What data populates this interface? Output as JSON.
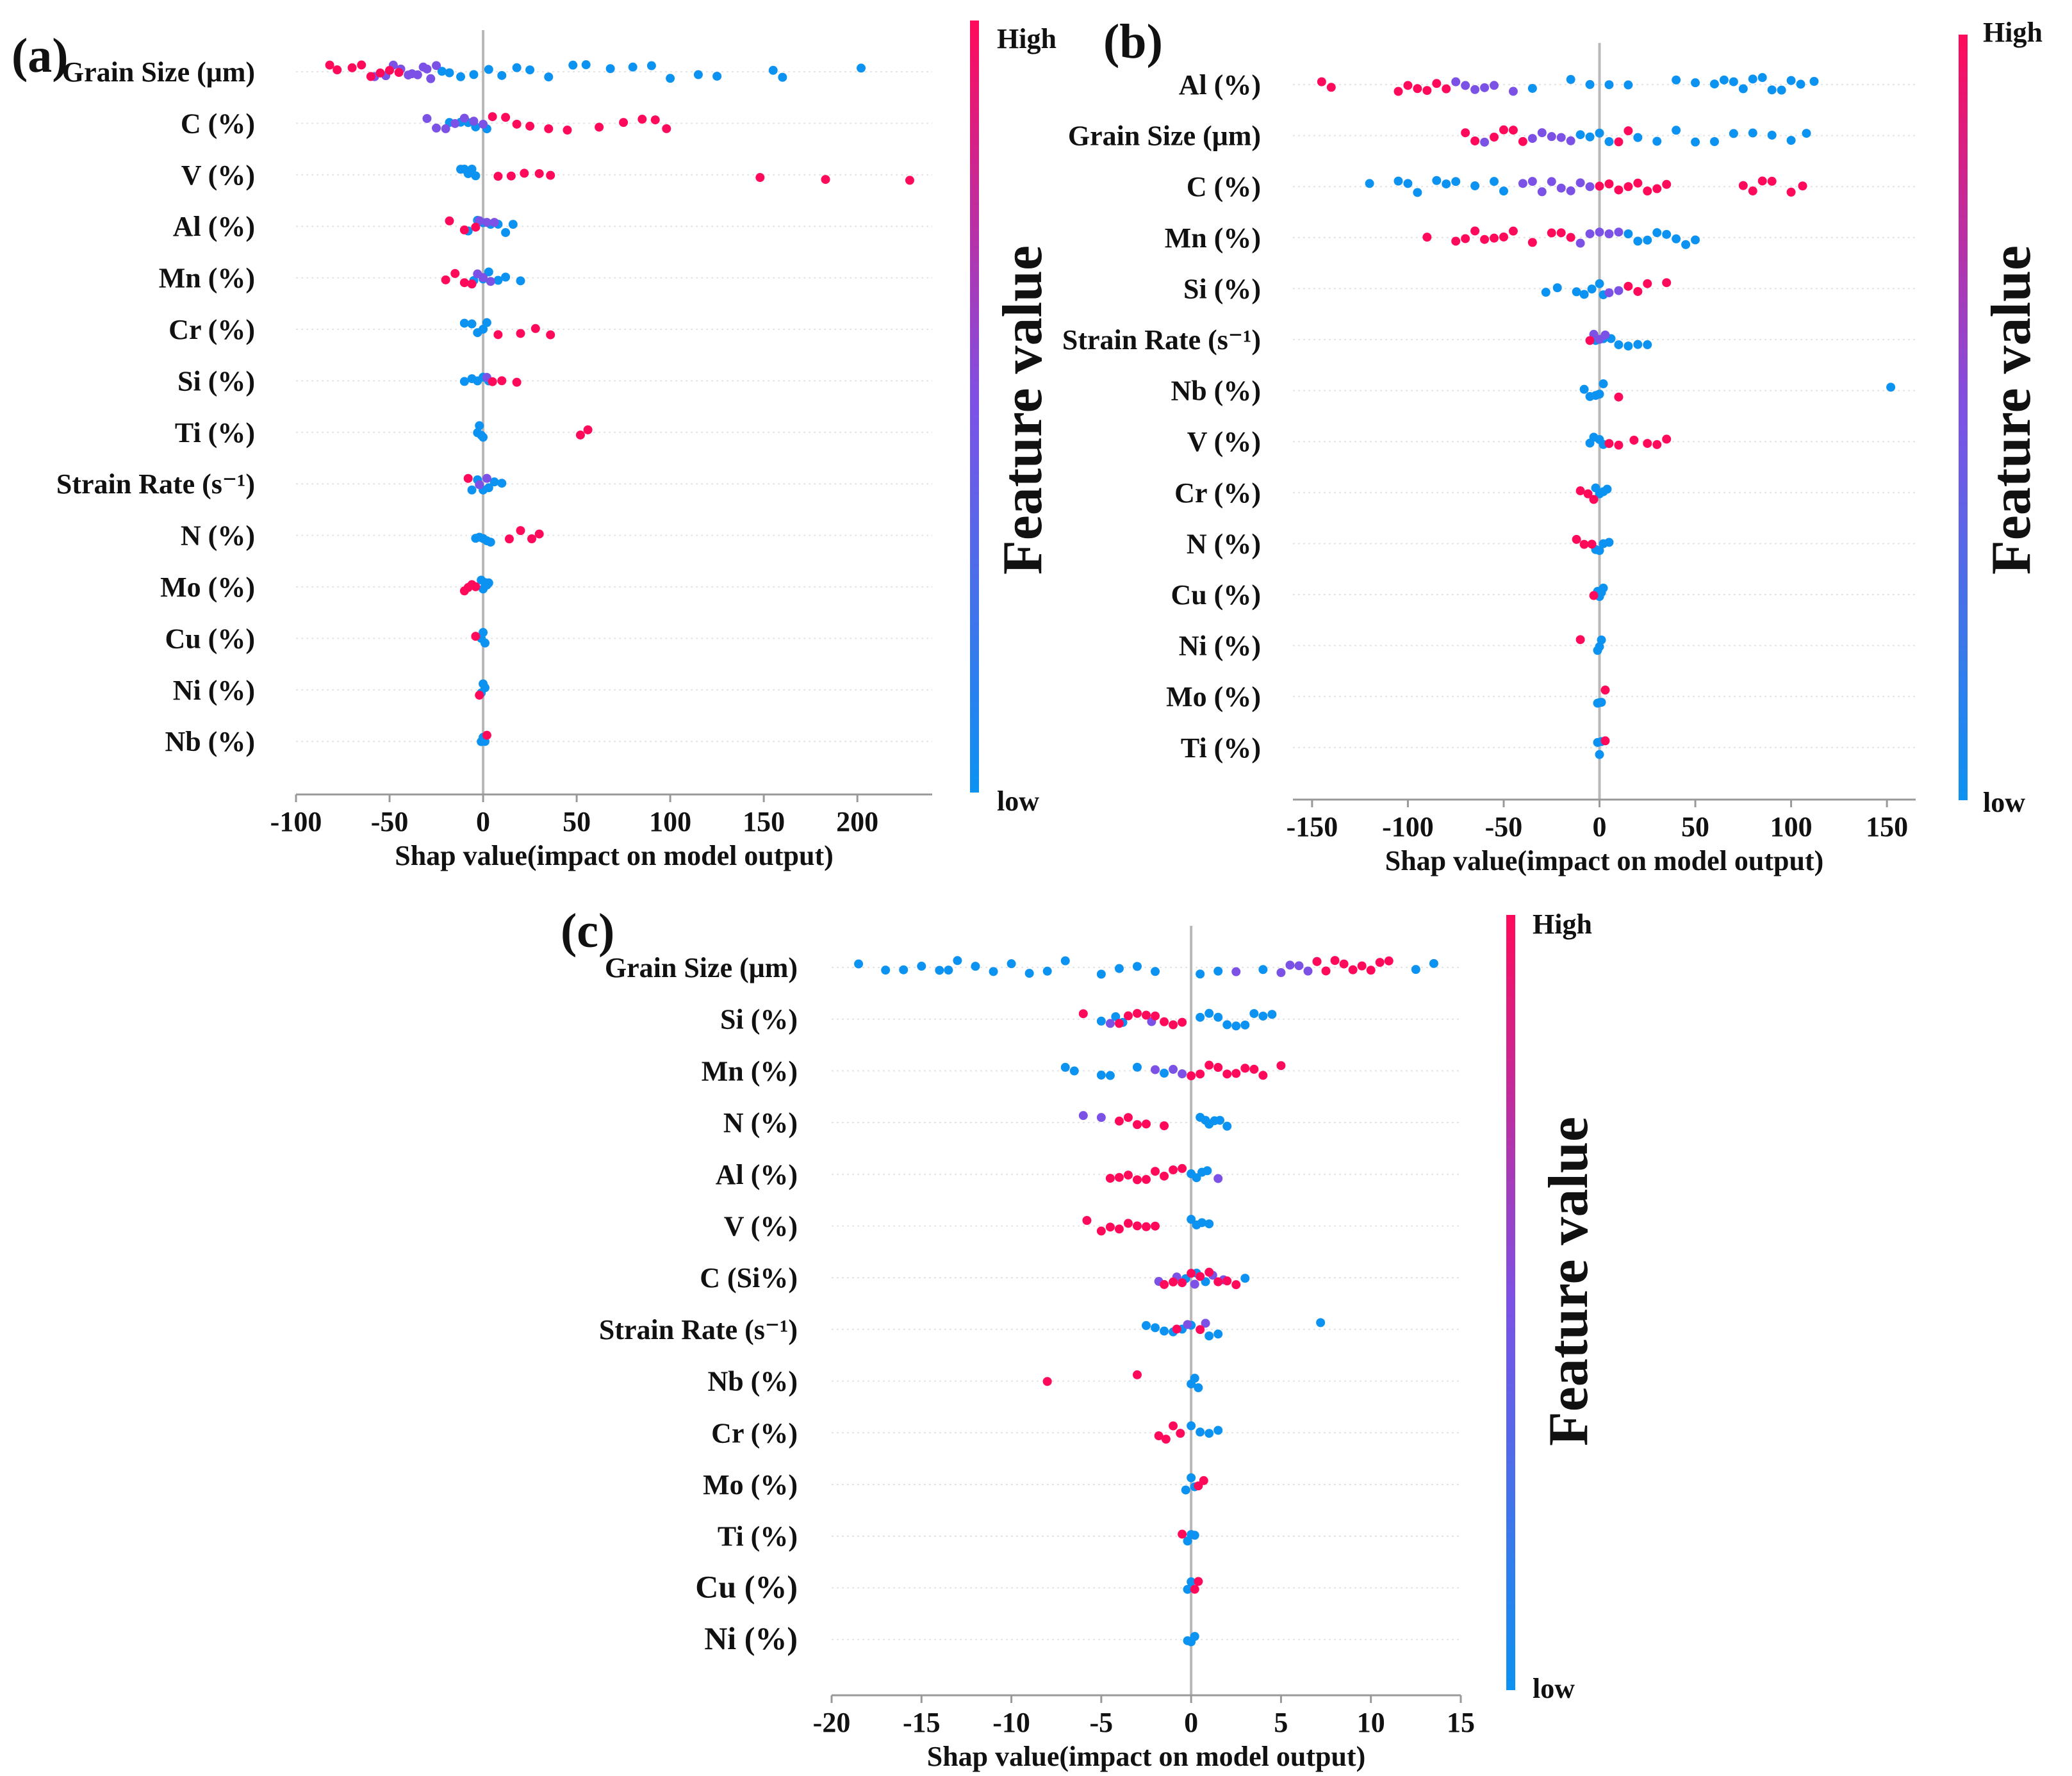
{
  "figure": {
    "colors": {
      "high": "#ff0a5a",
      "low": "#0c92f0",
      "mid": "#7c52e6",
      "axis": "#999999",
      "zero_line": "#b8b8b8",
      "grid": "#e4e4e4"
    }
  },
  "chart_data": [
    {
      "panel_label": "(a)",
      "type": "beeswarm",
      "xlabel": "Shap value(impact on model output)",
      "xlim": [
        -100,
        240
      ],
      "xticks": [
        -100,
        -50,
        0,
        50,
        100,
        150,
        200
      ],
      "colorbar": {
        "title": "Feature value",
        "high_label": "High",
        "low_label": "low"
      },
      "features": [
        {
          "name": "Grain Size (μm)",
          "high_points": [
            -82,
            -78,
            -70,
            -65,
            -60,
            -55,
            -50,
            -45
          ],
          "mixed_points": [
            -58,
            -52,
            -48,
            -44,
            -40,
            -38,
            -35,
            -32,
            -30,
            -28,
            -25
          ],
          "low_points": [
            -22,
            -18,
            -12,
            -5,
            3,
            10,
            18,
            25,
            35,
            48,
            55,
            68,
            80,
            90,
            100,
            115,
            125,
            155,
            160,
            202
          ]
        },
        {
          "name": "C (%)",
          "high_points": [
            5,
            12,
            18,
            25,
            35,
            45,
            62,
            75,
            85,
            92,
            98
          ],
          "mixed_points": [
            -30,
            -25,
            -20,
            -15,
            -10,
            -5,
            0
          ],
          "low_points": [
            -18,
            -12,
            -8,
            -4,
            2
          ]
        },
        {
          "name": "V (%)",
          "high_points": [
            8,
            15,
            22,
            30,
            36,
            148,
            183,
            228
          ],
          "mixed_points": [],
          "low_points": [
            -12,
            -10,
            -8,
            -6,
            -4
          ]
        },
        {
          "name": "Al (%)",
          "high_points": [
            -18,
            -10,
            -4
          ],
          "mixed_points": [
            -2,
            2,
            6
          ],
          "low_points": [
            -8,
            -3,
            0,
            4,
            8,
            12,
            16
          ]
        },
        {
          "name": "Mn (%)",
          "high_points": [
            -20,
            -15,
            -10,
            -6
          ],
          "mixed_points": [
            -3,
            0,
            4
          ],
          "low_points": [
            -5,
            0,
            3,
            8,
            12,
            20
          ]
        },
        {
          "name": "Cr (%)",
          "high_points": [
            8,
            20,
            28,
            36
          ],
          "mixed_points": [],
          "low_points": [
            -10,
            -6,
            -3,
            0,
            2
          ]
        },
        {
          "name": "Si (%)",
          "high_points": [
            5,
            10,
            18
          ],
          "mixed_points": [
            2
          ],
          "low_points": [
            -10,
            -6,
            -3,
            0,
            3
          ]
        },
        {
          "name": "Ti (%)",
          "high_points": [
            52,
            56
          ],
          "mixed_points": [],
          "low_points": [
            -3,
            -2,
            -1,
            0
          ]
        },
        {
          "name": "Strain Rate (s⁻¹)",
          "high_points": [
            -8
          ],
          "mixed_points": [
            -2,
            2
          ],
          "low_points": [
            -6,
            -3,
            0,
            3,
            6,
            10
          ]
        },
        {
          "name": "N (%)",
          "high_points": [
            14,
            20,
            26,
            30
          ],
          "mixed_points": [],
          "low_points": [
            -4,
            -2,
            0,
            2,
            4
          ]
        },
        {
          "name": "Mo (%)",
          "high_points": [
            -10,
            -8,
            -6,
            -4
          ],
          "mixed_points": [],
          "low_points": [
            -1,
            0,
            1,
            2,
            3
          ]
        },
        {
          "name": "Cu (%)",
          "high_points": [
            -4
          ],
          "mixed_points": [],
          "low_points": [
            -1,
            0,
            1
          ]
        },
        {
          "name": "Ni (%)",
          "high_points": [
            -2
          ],
          "mixed_points": [],
          "low_points": [
            -1,
            0,
            1
          ]
        },
        {
          "name": "Nb (%)",
          "high_points": [
            2
          ],
          "mixed_points": [],
          "low_points": [
            -1,
            0,
            1
          ]
        }
      ]
    },
    {
      "panel_label": "(b)",
      "type": "beeswarm",
      "xlabel": "Shap value(impact on model output)",
      "xlim": [
        -160,
        165
      ],
      "xticks": [
        -150,
        -100,
        -50,
        0,
        50,
        100,
        150
      ],
      "colorbar": {
        "title": "Feature value",
        "high_label": "High",
        "low_label": "low"
      },
      "features": [
        {
          "name": "Al (%)",
          "high_points": [
            -145,
            -140,
            -105,
            -100,
            -95,
            -90,
            -85,
            -80
          ],
          "mixed_points": [
            -75,
            -70,
            -65,
            -60,
            -55,
            -45
          ],
          "low_points": [
            -35,
            -15,
            -5,
            5,
            15,
            40,
            50,
            60,
            65,
            70,
            75,
            80,
            85,
            90,
            95,
            100,
            105,
            112
          ]
        },
        {
          "name": "Grain Size (μm)",
          "high_points": [
            -70,
            -65,
            -55,
            -50,
            -45,
            -40,
            10,
            15
          ],
          "mixed_points": [
            -60,
            -35,
            -30,
            -25,
            -20,
            -15
          ],
          "low_points": [
            -10,
            -5,
            0,
            5,
            20,
            30,
            40,
            50,
            60,
            70,
            80,
            90,
            100,
            108
          ]
        },
        {
          "name": "C (%)",
          "high_points": [
            0,
            5,
            10,
            15,
            20,
            25,
            30,
            35,
            75,
            80,
            85,
            90,
            100,
            106
          ],
          "mixed_points": [
            -40,
            -35,
            -30,
            -25,
            -20,
            -15,
            -10,
            -5
          ],
          "low_points": [
            -120,
            -105,
            -100,
            -95,
            -85,
            -80,
            -75,
            -65,
            -55,
            -50
          ]
        },
        {
          "name": "Mn (%)",
          "high_points": [
            -90,
            -75,
            -70,
            -65,
            -60,
            -55,
            -50,
            -45,
            -35,
            -25,
            -20,
            -15
          ],
          "mixed_points": [
            -10,
            -5,
            0,
            5,
            10
          ],
          "low_points": [
            15,
            20,
            25,
            30,
            35,
            40,
            45,
            50
          ]
        },
        {
          "name": "Si (%)",
          "high_points": [
            15,
            20,
            25,
            35
          ],
          "mixed_points": [
            5,
            10
          ],
          "low_points": [
            -28,
            -22,
            -12,
            -8,
            -4,
            0,
            2
          ]
        },
        {
          "name": "Strain Rate (s⁻¹)",
          "high_points": [
            -5
          ],
          "mixed_points": [
            -3,
            0,
            3
          ],
          "low_points": [
            -2,
            2,
            6,
            10,
            15,
            20,
            25
          ]
        },
        {
          "name": "Nb (%)",
          "high_points": [
            10
          ],
          "mixed_points": [],
          "low_points": [
            -8,
            -5,
            -2,
            0,
            2,
            152
          ]
        },
        {
          "name": "V (%)",
          "high_points": [
            5,
            10,
            18,
            25,
            30,
            35
          ],
          "mixed_points": [],
          "low_points": [
            -5,
            -3,
            0,
            2
          ]
        },
        {
          "name": "Cr (%)",
          "high_points": [
            -10,
            -6,
            -3
          ],
          "mixed_points": [],
          "low_points": [
            -2,
            0,
            2,
            4
          ]
        },
        {
          "name": "N (%)",
          "high_points": [
            -12,
            -8,
            -4
          ],
          "mixed_points": [],
          "low_points": [
            -2,
            0,
            2,
            5
          ]
        },
        {
          "name": "Cu (%)",
          "high_points": [
            -3
          ],
          "mixed_points": [],
          "low_points": [
            -1,
            0,
            1,
            2
          ]
        },
        {
          "name": "Ni (%)",
          "high_points": [
            -10
          ],
          "mixed_points": [],
          "low_points": [
            -1,
            0,
            1
          ]
        },
        {
          "name": "Mo (%)",
          "high_points": [
            3
          ],
          "mixed_points": [],
          "low_points": [
            -1,
            0,
            1
          ]
        },
        {
          "name": "Ti (%)",
          "high_points": [
            3
          ],
          "mixed_points": [],
          "low_points": [
            -1,
            0,
            1
          ]
        }
      ]
    },
    {
      "panel_label": "(c)",
      "type": "beeswarm",
      "xlabel": "Shap value(impact on model output)",
      "xlim": [
        -20,
        15
      ],
      "xticks": [
        -20,
        -15,
        -10,
        -5,
        0,
        5,
        10,
        15
      ],
      "colorbar": {
        "title": "Feature value",
        "high_label": "High",
        "low_label": "low"
      },
      "features": [
        {
          "name": "Grain Size (μm)",
          "high_points": [
            7,
            7.5,
            8,
            8.5,
            9,
            9.5,
            10,
            10.5,
            11
          ],
          "mixed_points": [
            2.5,
            5,
            5.5,
            6,
            6.5,
            7
          ],
          "low_points": [
            -18.5,
            -17,
            -16,
            -15,
            -14,
            -13.5,
            -13,
            -12,
            -11,
            -10,
            -9,
            -8,
            -7,
            -5,
            -4,
            -3,
            -2,
            0.5,
            1.5,
            4,
            12.5,
            13.5
          ]
        },
        {
          "name": "Si (%)",
          "high_points": [
            -6,
            -4,
            -3.5,
            -3,
            -2.5,
            -2,
            -1.5,
            -1,
            -0.5
          ],
          "mixed_points": [
            -4.5,
            -2.2
          ],
          "low_points": [
            -5,
            -4.2,
            -3.8,
            0.5,
            1,
            1.5,
            2,
            2.5,
            3,
            3.5,
            4,
            4.5
          ]
        },
        {
          "name": "Mn (%)",
          "high_points": [
            0,
            0.5,
            1,
            1.5,
            2,
            2.5,
            3,
            3.5,
            4,
            5
          ],
          "mixed_points": [
            -2,
            -1,
            -0.5
          ],
          "low_points": [
            -7,
            -6.5,
            -5,
            -4.5,
            -3,
            -1.5
          ]
        },
        {
          "name": "N (%)",
          "high_points": [
            -4,
            -3.5,
            -3,
            -2.5,
            -1.5
          ],
          "mixed_points": [
            -6,
            -5
          ],
          "low_points": [
            0.5,
            0.8,
            1,
            1.3,
            1.6,
            2
          ]
        },
        {
          "name": "Al (%)",
          "high_points": [
            -4.5,
            -4,
            -3.5,
            -3,
            -2.5,
            -2,
            -1.5,
            -1,
            -0.5
          ],
          "mixed_points": [
            1.5
          ],
          "low_points": [
            0,
            0.3,
            0.6,
            0.9
          ]
        },
        {
          "name": "V (%)",
          "high_points": [
            -5.8,
            -5,
            -4.5,
            -4,
            -3.5,
            -3,
            -2.5,
            -2
          ],
          "mixed_points": [],
          "low_points": [
            0,
            0.3,
            0.6,
            1
          ]
        },
        {
          "name": "C (Si%)",
          "high_points": [
            -1.5,
            -1,
            -0.5,
            0,
            0.5,
            1,
            1.5,
            2,
            2.5
          ],
          "mixed_points": [
            -1.8,
            -0.8,
            0.2,
            1.2,
            1.8
          ],
          "low_points": [
            -0.3,
            0.3,
            0.8,
            3
          ]
        },
        {
          "name": "Strain Rate (s⁻¹)",
          "high_points": [
            -0.8,
            0.5
          ],
          "mixed_points": [
            -0.2,
            0.8
          ],
          "low_points": [
            -2.5,
            -2,
            -1.5,
            -1,
            -0.5,
            0,
            1,
            1.5,
            7.2
          ]
        },
        {
          "name": "Nb (%)",
          "high_points": [
            -8,
            -3
          ],
          "mixed_points": [],
          "low_points": [
            0,
            0.2,
            0.4
          ]
        },
        {
          "name": "Cr (%)",
          "high_points": [
            -1.8,
            -1.4,
            -1,
            -0.6
          ],
          "mixed_points": [],
          "low_points": [
            0,
            0.5,
            1,
            1.5
          ]
        },
        {
          "name": "Mo (%)",
          "high_points": [
            0.4,
            0.7
          ],
          "mixed_points": [],
          "low_points": [
            -0.3,
            0,
            0.2
          ]
        },
        {
          "name": "Ti (%)",
          "high_points": [
            -0.5
          ],
          "mixed_points": [],
          "low_points": [
            -0.2,
            0,
            0.2
          ]
        },
        {
          "name": "Cu (%)",
          "high_points": [
            0.2,
            0.4
          ],
          "mixed_points": [],
          "low_points": [
            -0.2,
            0
          ]
        },
        {
          "name": "Ni (%)",
          "high_points": [],
          "mixed_points": [],
          "low_points": [
            -0.2,
            0,
            0.2
          ]
        }
      ]
    }
  ]
}
